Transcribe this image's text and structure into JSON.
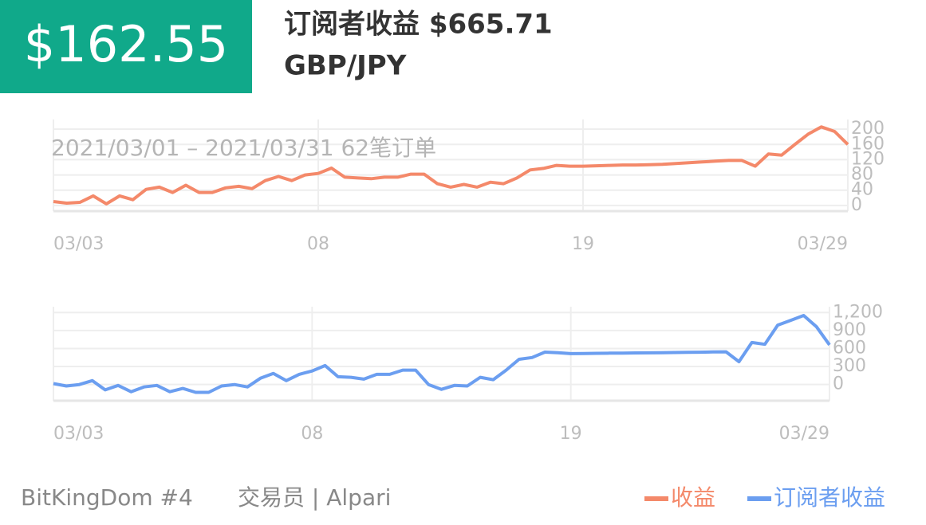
{
  "header": {
    "value": "$162.55",
    "title": "订阅者收益 $665.71",
    "pair": "GBP/JPY"
  },
  "footer": {
    "name": "BitKingDom #4",
    "broker": "交易员 | Alpari"
  },
  "chart_data": [
    {
      "type": "line",
      "subtitle": "2021/03/01 – 2021/03/31  62笔订单",
      "categories": [
        "03/03",
        null,
        null,
        null,
        null,
        null,
        null,
        null,
        null,
        null,
        null,
        null,
        null,
        null,
        null,
        null,
        null,
        null,
        null,
        null,
        "08",
        null,
        null,
        null,
        null,
        null,
        null,
        null,
        null,
        null,
        null,
        null,
        null,
        null,
        null,
        null,
        null,
        null,
        null,
        null,
        "19",
        null,
        null,
        null,
        null,
        null,
        null,
        null,
        null,
        null,
        null,
        null,
        null,
        null,
        null,
        null,
        null,
        null,
        null,
        null,
        "03/29"
      ],
      "series": [
        {
          "name": "收益",
          "color": "#f4896a",
          "values": [
            10,
            6,
            8,
            25,
            4,
            25,
            15,
            42,
            48,
            34,
            53,
            34,
            34,
            46,
            50,
            44,
            65,
            76,
            65,
            80,
            84,
            98,
            74,
            72,
            70,
            74,
            74,
            82,
            82,
            57,
            48,
            55,
            48,
            61,
            57,
            72,
            93,
            97,
            105,
            103,
            103,
            104,
            105,
            106,
            106,
            107,
            108,
            110,
            112,
            114,
            116,
            118,
            118,
            103,
            135,
            132,
            160,
            187,
            206,
            194,
            160
          ]
        }
      ],
      "ylim": [
        -15,
        215
      ],
      "yticks": [
        0,
        40,
        80,
        120,
        160,
        200
      ],
      "grid": true
    },
    {
      "type": "line",
      "categories": [
        "03/03",
        null,
        null,
        null,
        null,
        null,
        null,
        null,
        null,
        null,
        null,
        null,
        null,
        null,
        null,
        null,
        null,
        null,
        null,
        null,
        "08",
        null,
        null,
        null,
        null,
        null,
        null,
        null,
        null,
        null,
        null,
        null,
        null,
        null,
        null,
        null,
        null,
        null,
        null,
        null,
        "19",
        null,
        null,
        null,
        null,
        null,
        null,
        null,
        null,
        null,
        null,
        null,
        null,
        null,
        null,
        null,
        null,
        null,
        null,
        null,
        "03/29"
      ],
      "series": [
        {
          "name": "订阅者收益",
          "color": "#6b9ef0",
          "values": [
            15,
            -25,
            0,
            65,
            -90,
            -15,
            -120,
            -40,
            -15,
            -120,
            -65,
            -130,
            -130,
            -25,
            0,
            -40,
            105,
            185,
            65,
            170,
            225,
            315,
            130,
            120,
            90,
            170,
            170,
            240,
            240,
            0,
            -80,
            -15,
            -25,
            120,
            80,
            240,
            420,
            450,
            540,
            530,
            515,
            517,
            520,
            522,
            524,
            526,
            528,
            530,
            533,
            536,
            539,
            542,
            545,
            380,
            700,
            670,
            990,
            1070,
            1150,
            960,
            660
          ]
        }
      ],
      "ylim": [
        -270,
        1230
      ],
      "yticks": [
        0,
        300,
        600,
        900,
        {
          "value": 1200,
          "label": "1,200"
        }
      ],
      "grid": true
    }
  ]
}
